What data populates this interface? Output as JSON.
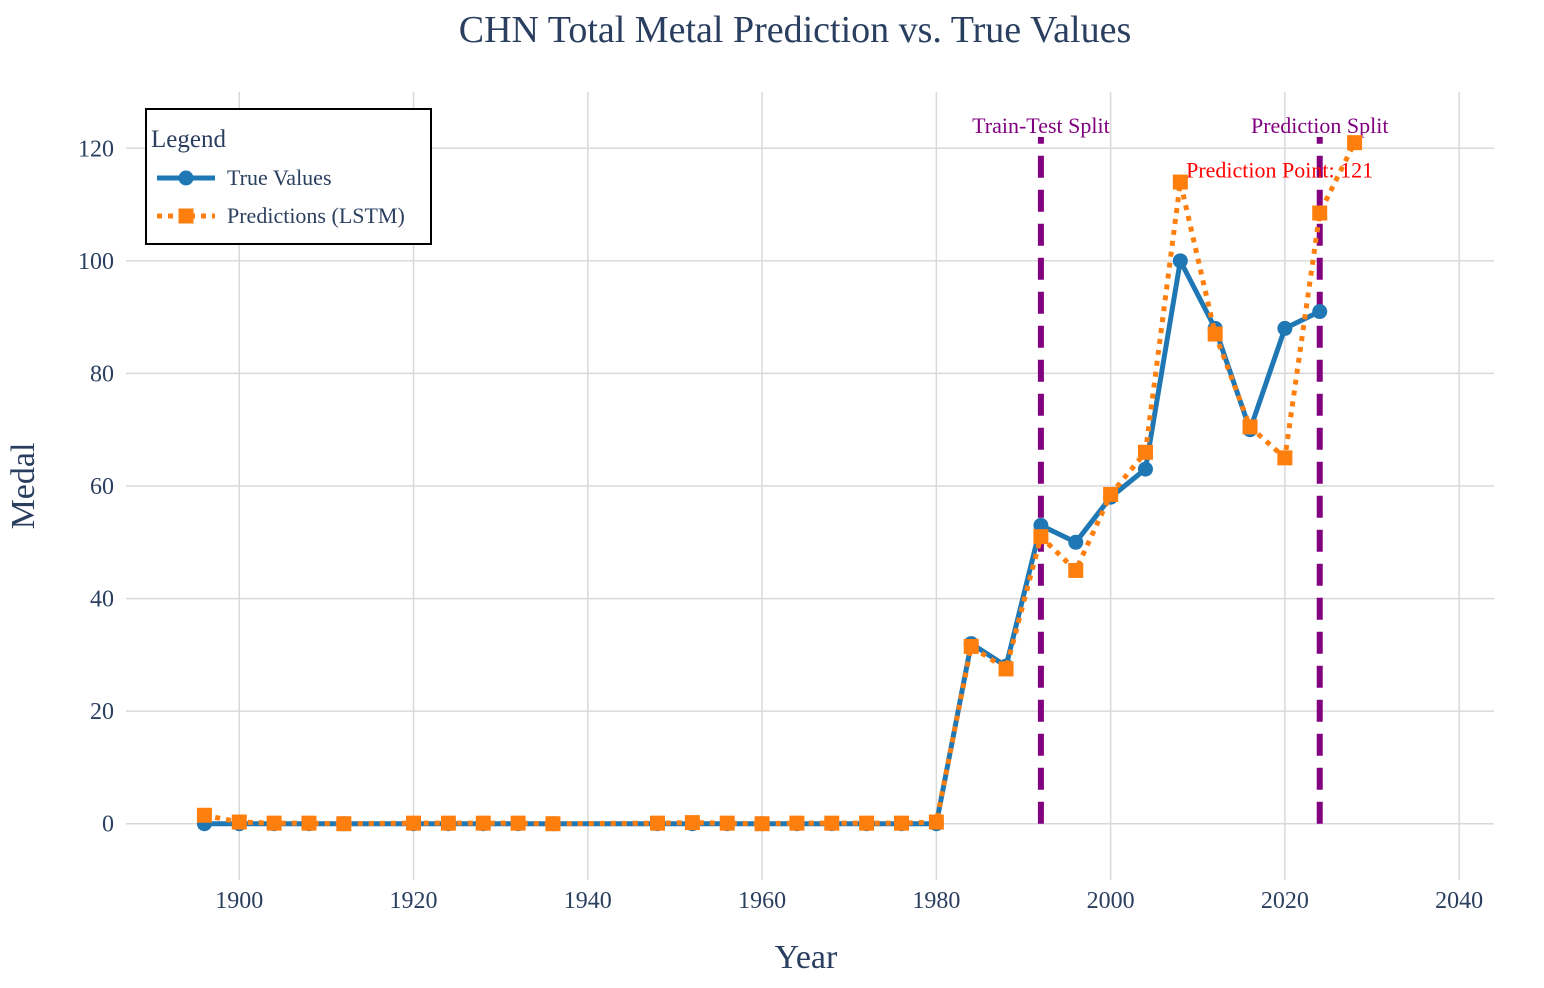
{
  "chart_data": {
    "type": "line",
    "title": "CHN Total Metal Prediction vs. True Values",
    "xlabel": "Year",
    "ylabel": "Medal",
    "xlim": [
      1887,
      2044
    ],
    "ylim": [
      -10,
      130
    ],
    "x_ticks": [
      1900,
      1920,
      1940,
      1960,
      1980,
      2000,
      2020,
      2040
    ],
    "y_ticks": [
      0,
      20,
      40,
      60,
      80,
      100,
      120
    ],
    "grid": true,
    "legend": {
      "title": "Legend",
      "placement": "top-left"
    },
    "series": [
      {
        "name": "True Values",
        "color": "#1f77b4",
        "marker": "circle",
        "line_style": "solid",
        "x": [
          1896,
          1900,
          1904,
          1908,
          1912,
          1920,
          1924,
          1928,
          1932,
          1936,
          1948,
          1952,
          1956,
          1960,
          1964,
          1968,
          1972,
          1976,
          1980,
          1984,
          1988,
          1992,
          1996,
          2000,
          2004,
          2008,
          2012,
          2016,
          2020,
          2024
        ],
        "values": [
          0,
          0,
          0,
          0,
          0,
          0,
          0,
          0,
          0,
          0,
          0,
          0,
          0,
          0,
          0,
          0,
          0,
          0,
          0,
          32,
          28,
          53,
          50,
          58,
          63,
          100,
          88,
          70,
          88,
          91
        ]
      },
      {
        "name": "Predictions (LSTM)",
        "color": "#ff7f0e",
        "marker": "square",
        "line_style": "dotted",
        "x": [
          1896,
          1900,
          1904,
          1908,
          1912,
          1920,
          1924,
          1928,
          1932,
          1936,
          1948,
          1952,
          1956,
          1960,
          1964,
          1968,
          1972,
          1976,
          1980,
          1984,
          1988,
          1992,
          1996,
          2000,
          2004,
          2008,
          2012,
          2016,
          2020,
          2024,
          2028
        ],
        "values": [
          1.5,
          0.3,
          0.1,
          0.1,
          0,
          0.1,
          0.1,
          0.1,
          0.1,
          0,
          0.1,
          0.2,
          0.1,
          0,
          0.1,
          0.1,
          0.1,
          0.1,
          0.3,
          31.5,
          27.5,
          51,
          45,
          58.5,
          66,
          114,
          87,
          70.5,
          65,
          108.5,
          121
        ]
      }
    ],
    "vertical_lines": [
      {
        "x": 1992,
        "label": "Train-Test Split",
        "color": "#800080"
      },
      {
        "x": 2024,
        "label": "Prediction Split",
        "color": "#800080"
      }
    ],
    "annotations": [
      {
        "text": "Prediction Point: 121",
        "x": 2028,
        "y": 121,
        "color": "#ff0000"
      }
    ]
  }
}
